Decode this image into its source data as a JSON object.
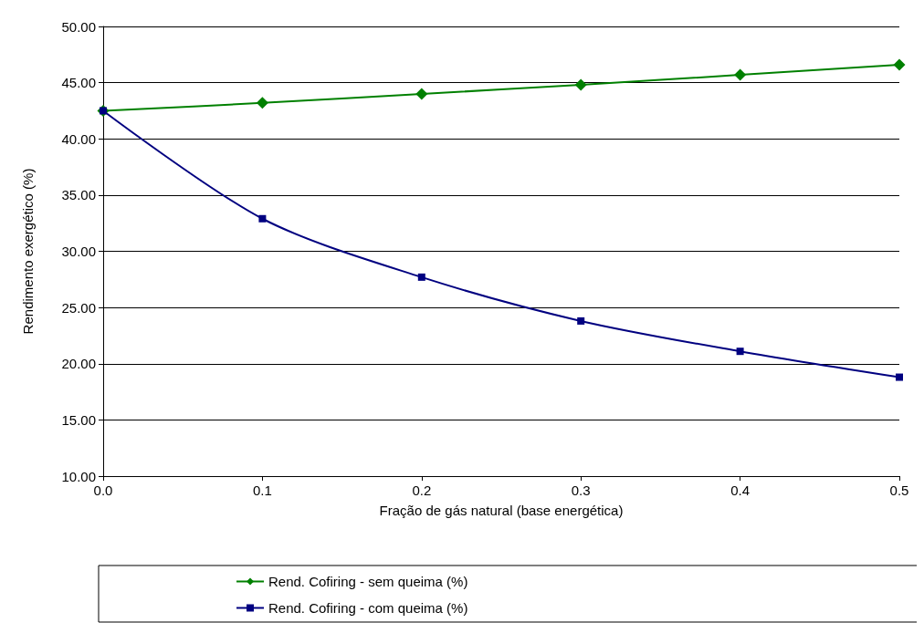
{
  "chart_data": {
    "type": "line",
    "xlabel": "Fração de gás natural (base energética)",
    "ylabel": "Rendimento exergético (%)",
    "x": [
      0,
      0.1,
      0.2,
      0.3,
      0.4,
      0.5
    ],
    "series": [
      {
        "name": "Rend. Cofiring - sem queima (%)",
        "color": "#008000",
        "marker": "diamond",
        "values": [
          42.5,
          43.2,
          44.0,
          44.8,
          45.7,
          46.6
        ]
      },
      {
        "name": "Rend. Cofiring - com queima (%)",
        "color": "#000080",
        "marker": "square",
        "values": [
          42.5,
          32.9,
          27.7,
          23.8,
          21.1,
          18.8
        ]
      }
    ],
    "xlim": [
      0,
      0.5
    ],
    "xticks": [
      {
        "value": 0,
        "label": "0.0"
      },
      {
        "value": 0.1,
        "label": "0.1"
      },
      {
        "value": 0.2,
        "label": "0.2"
      },
      {
        "value": 0.3,
        "label": "0.3"
      },
      {
        "value": 0.4,
        "label": "0.4"
      },
      {
        "value": 0.5,
        "label": "0.5"
      }
    ],
    "ylim": [
      10,
      50
    ],
    "yticks": [
      {
        "value": 10,
        "label": "10.00"
      },
      {
        "value": 15,
        "label": "15.00"
      },
      {
        "value": 20,
        "label": "20.00"
      },
      {
        "value": 25,
        "label": "25.00"
      },
      {
        "value": 30,
        "label": "30.00"
      },
      {
        "value": 35,
        "label": "35.00"
      },
      {
        "value": 40,
        "label": "40.00"
      },
      {
        "value": 45,
        "label": "45.00"
      },
      {
        "value": 50,
        "label": "50.00"
      }
    ],
    "grid": "y",
    "legend": "bottom",
    "line_style": "solid"
  }
}
